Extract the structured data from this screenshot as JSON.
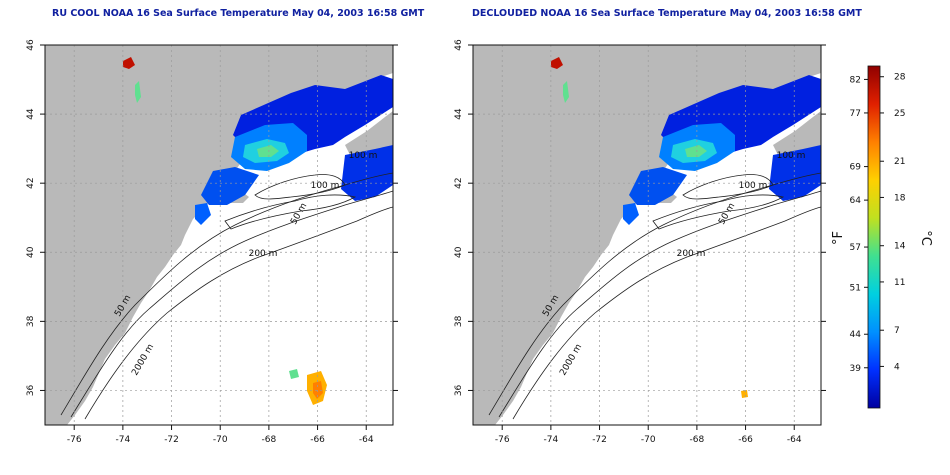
{
  "panels": [
    {
      "id": "left",
      "title": "RU COOL NOAA 16 Sea Surface Temperature May 04, 2003 16:58 GMT",
      "contour_labels": [
        "100 m",
        "100 m",
        "50 m",
        "200 m",
        "50 m",
        "2000 m"
      ],
      "offshore_warm_patch": true
    },
    {
      "id": "right",
      "title": "DECLOUDED NOAA 16 Sea Surface Temperature May 04, 2003 16:58 GMT",
      "contour_labels": [
        "100 m",
        "100 m",
        "50 m",
        "200 m",
        "50 m",
        "2000 m"
      ],
      "offshore_warm_patch": false
    }
  ],
  "axes": {
    "x_ticks": [
      "-76",
      "-74",
      "-72",
      "-70",
      "-68",
      "-66",
      "-64"
    ],
    "y_ticks": [
      "46",
      "44",
      "42",
      "40",
      "38",
      "36"
    ],
    "x_range": [
      -77.2,
      -62.9
    ],
    "y_range": [
      35.0,
      46.0
    ]
  },
  "colorbar": {
    "fahrenheit_ticks": [
      "82",
      "77",
      "69",
      "64",
      "57",
      "51",
      "44",
      "39"
    ],
    "celsius_ticks": [
      "28",
      "25",
      "21",
      "18",
      "14",
      "11",
      "7",
      "4"
    ],
    "fahrenheit_unit": "°F",
    "celsius_unit": "°C",
    "colors": [
      "#0000a0",
      "#0030ff",
      "#0090ff",
      "#00d0e0",
      "#40e090",
      "#c0e020",
      "#ffd000",
      "#ff8000",
      "#e02000",
      "#900000"
    ]
  },
  "colors": {
    "land": "#b9b9b9",
    "ocean_no_data": "#ffffff",
    "grid": "#9a9a9a",
    "title": "#1020a0"
  }
}
